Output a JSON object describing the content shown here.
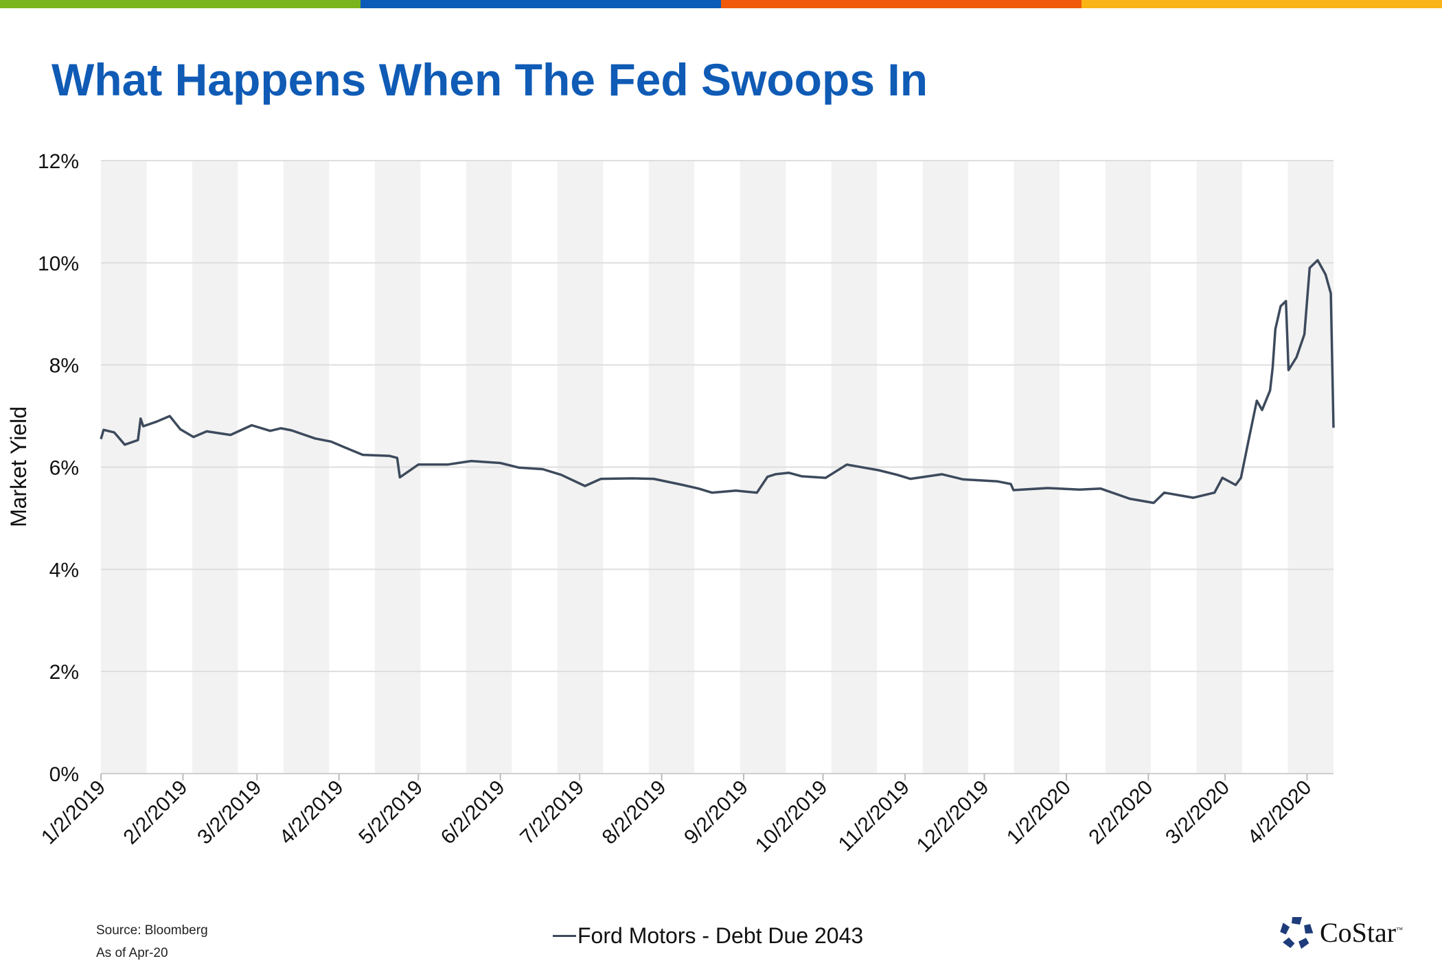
{
  "header": {
    "title": "What Happens When The Fed Swoops In",
    "bar_colors": [
      "#7ab51d",
      "#0a5cb8",
      "#f05a0a",
      "#fbb416"
    ]
  },
  "footer": {
    "source": "Source: Bloomberg",
    "as_of": "As of Apr-20",
    "logo_text": "CoStar",
    "logo_tm": "™",
    "logo_color": "#1e3c7a"
  },
  "chart_data": {
    "type": "line",
    "title": "",
    "xlabel": "",
    "ylabel": "Market Yield",
    "ylim": [
      0,
      12
    ],
    "xlim": [
      "2019-01-02",
      "2020-04-12"
    ],
    "yticks": [
      0,
      2,
      4,
      6,
      8,
      10,
      12
    ],
    "ytick_labels": [
      "0%",
      "2%",
      "4%",
      "6%",
      "8%",
      "10%",
      "12%"
    ],
    "xticks": [
      "2019-01-02",
      "2019-02-02",
      "2019-03-02",
      "2019-04-02",
      "2019-05-02",
      "2019-06-02",
      "2019-07-02",
      "2019-08-02",
      "2019-09-02",
      "2019-10-02",
      "2019-11-02",
      "2019-12-02",
      "2020-01-02",
      "2020-02-02",
      "2020-03-02",
      "2020-04-02"
    ],
    "xtick_labels": [
      "1/2/2019",
      "2/2/2019",
      "3/2/2019",
      "4/2/2019",
      "5/2/2019",
      "6/2/2019",
      "7/2/2019",
      "8/2/2019",
      "9/2/2019",
      "10/2/2019",
      "11/2/2019",
      "12/2/2019",
      "1/2/2020",
      "2/2/2020",
      "3/2/2020",
      "4/2/2020"
    ],
    "grid": true,
    "alternating_bands": true,
    "legend_placement": "bottom",
    "series": [
      {
        "name": "Ford Motors - Debt Due 2043",
        "color": "#3d4a5c",
        "points": [
          [
            "2019-01-02",
            6.55
          ],
          [
            "2019-01-03",
            6.73
          ],
          [
            "2019-01-07",
            6.68
          ],
          [
            "2019-01-11",
            6.44
          ],
          [
            "2019-01-16",
            6.53
          ],
          [
            "2019-01-17",
            6.95
          ],
          [
            "2019-01-18",
            6.8
          ],
          [
            "2019-01-23",
            6.89
          ],
          [
            "2019-01-28",
            7.0
          ],
          [
            "2019-02-01",
            6.74
          ],
          [
            "2019-02-06",
            6.59
          ],
          [
            "2019-02-11",
            6.7
          ],
          [
            "2019-02-20",
            6.63
          ],
          [
            "2019-02-28",
            6.82
          ],
          [
            "2019-03-07",
            6.71
          ],
          [
            "2019-03-11",
            6.76
          ],
          [
            "2019-03-15",
            6.72
          ],
          [
            "2019-03-24",
            6.56
          ],
          [
            "2019-03-30",
            6.5
          ],
          [
            "2019-04-04",
            6.39
          ],
          [
            "2019-04-11",
            6.24
          ],
          [
            "2019-04-21",
            6.22
          ],
          [
            "2019-04-24",
            6.18
          ],
          [
            "2019-04-25",
            5.8
          ],
          [
            "2019-05-02",
            6.05
          ],
          [
            "2019-05-13",
            6.05
          ],
          [
            "2019-05-22",
            6.12
          ],
          [
            "2019-06-02",
            6.08
          ],
          [
            "2019-06-09",
            5.99
          ],
          [
            "2019-06-18",
            5.96
          ],
          [
            "2019-06-25",
            5.85
          ],
          [
            "2019-07-04",
            5.63
          ],
          [
            "2019-07-10",
            5.77
          ],
          [
            "2019-07-22",
            5.78
          ],
          [
            "2019-07-30",
            5.77
          ],
          [
            "2019-08-10",
            5.65
          ],
          [
            "2019-08-16",
            5.58
          ],
          [
            "2019-08-21",
            5.5
          ],
          [
            "2019-08-30",
            5.54
          ],
          [
            "2019-09-07",
            5.5
          ],
          [
            "2019-09-11",
            5.81
          ],
          [
            "2019-09-14",
            5.86
          ],
          [
            "2019-09-19",
            5.89
          ],
          [
            "2019-09-24",
            5.82
          ],
          [
            "2019-10-03",
            5.79
          ],
          [
            "2019-10-11",
            6.05
          ],
          [
            "2019-10-23",
            5.94
          ],
          [
            "2019-10-30",
            5.85
          ],
          [
            "2019-11-04",
            5.77
          ],
          [
            "2019-11-16",
            5.86
          ],
          [
            "2019-11-24",
            5.76
          ],
          [
            "2019-12-07",
            5.72
          ],
          [
            "2019-12-12",
            5.67
          ],
          [
            "2019-12-13",
            5.55
          ],
          [
            "2019-12-26",
            5.59
          ],
          [
            "2020-01-07",
            5.56
          ],
          [
            "2020-01-15",
            5.58
          ],
          [
            "2020-01-26",
            5.38
          ],
          [
            "2020-02-04",
            5.3
          ],
          [
            "2020-02-08",
            5.5
          ],
          [
            "2020-02-19",
            5.4
          ],
          [
            "2020-02-27",
            5.5
          ],
          [
            "2020-03-01",
            5.79
          ],
          [
            "2020-03-06",
            5.65
          ],
          [
            "2020-03-08",
            5.79
          ],
          [
            "2020-03-11",
            6.55
          ],
          [
            "2020-03-14",
            7.3
          ],
          [
            "2020-03-16",
            7.12
          ],
          [
            "2020-03-19",
            7.5
          ],
          [
            "2020-03-20",
            7.95
          ],
          [
            "2020-03-21",
            8.7
          ],
          [
            "2020-03-23",
            9.15
          ],
          [
            "2020-03-25",
            9.25
          ],
          [
            "2020-03-26",
            7.9
          ],
          [
            "2020-03-29",
            8.15
          ],
          [
            "2020-04-01",
            8.6
          ],
          [
            "2020-04-03",
            9.9
          ],
          [
            "2020-04-06",
            10.05
          ],
          [
            "2020-04-09",
            9.77
          ],
          [
            "2020-04-11",
            9.4
          ],
          [
            "2020-04-12",
            6.77
          ]
        ]
      }
    ]
  }
}
